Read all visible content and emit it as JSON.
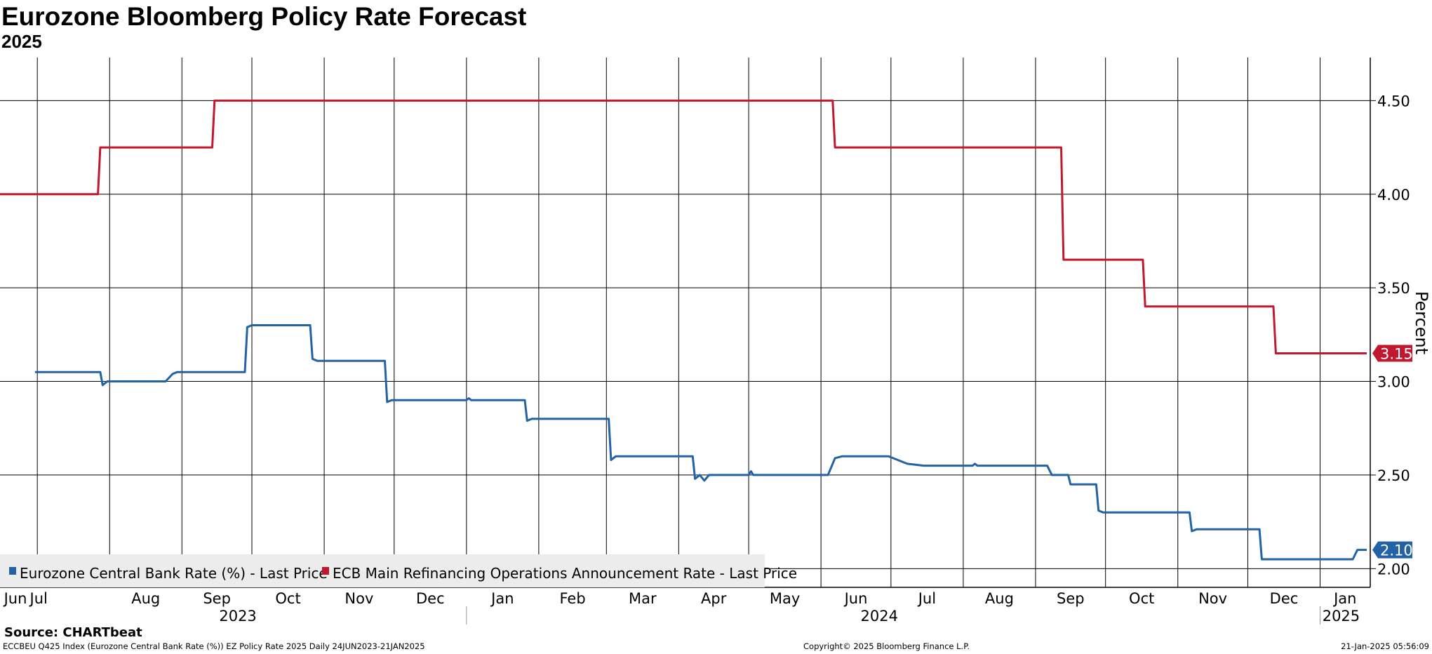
{
  "header": {
    "title": "Eurozone Bloomberg Policy Rate Forecast",
    "subtitle": "2025"
  },
  "footer": {
    "source": "Source: CHARTbeat",
    "left": "ECCBEU Q425 Index (Eurozone Central Bank Rate (%)) EZ Policy Rate 2025  Daily 24JUN2023-21JAN2025",
    "middle": "Copyright© 2025 Bloomberg Finance L.P.",
    "right": "21-Jan-2025 05:56:09"
  },
  "colors": {
    "ecb_refi": "#c0182f",
    "ez_cbr": "#2262a5",
    "legend_bg": "#ececec"
  },
  "chart_data": {
    "type": "line",
    "ylabel": "Percent",
    "ylim": [
      1.9,
      4.73
    ],
    "yticks": [
      "2.00",
      "2.50",
      "3.00",
      "3.50",
      "4.00",
      "4.50"
    ],
    "xlim": [
      "2023-06-24",
      "2025-01-21"
    ],
    "grid": true,
    "legend_position": "bottom-left",
    "month_ticks": [
      {
        "label": "Jun",
        "date": "2023-06-15"
      },
      {
        "label": "Jul",
        "date": "2023-07-01"
      },
      {
        "label": "Aug",
        "date": "2023-08-01"
      },
      {
        "label": "Sep",
        "date": "2023-09-01"
      },
      {
        "label": "Oct",
        "date": "2023-10-01"
      },
      {
        "label": "Nov",
        "date": "2023-11-01"
      },
      {
        "label": "Dec",
        "date": "2023-12-01"
      },
      {
        "label": "Jan",
        "date": "2024-01-01"
      },
      {
        "label": "Feb",
        "date": "2024-02-01"
      },
      {
        "label": "Mar",
        "date": "2024-03-01"
      },
      {
        "label": "Apr",
        "date": "2024-04-01"
      },
      {
        "label": "May",
        "date": "2024-05-01"
      },
      {
        "label": "Jun",
        "date": "2024-06-01"
      },
      {
        "label": "Jul",
        "date": "2024-07-01"
      },
      {
        "label": "Aug",
        "date": "2024-08-01"
      },
      {
        "label": "Sep",
        "date": "2024-09-01"
      },
      {
        "label": "Oct",
        "date": "2024-10-01"
      },
      {
        "label": "Nov",
        "date": "2024-11-01"
      },
      {
        "label": "Dec",
        "date": "2024-12-01"
      },
      {
        "label": "Jan",
        "date": "2025-01-01"
      }
    ],
    "year_labels": [
      {
        "label": "2023",
        "date": "2023-09-25"
      },
      {
        "label": "2024",
        "date": "2024-06-26"
      },
      {
        "label": "2025",
        "date": "2025-01-10"
      }
    ],
    "year_dividers": [
      "2024-01-01",
      "2025-01-01"
    ],
    "series": [
      {
        "name": "ECB Main Refinancing Operations Announcement Rate - Last Price",
        "color": "#c0182f",
        "last_label": "3.15",
        "points": [
          [
            "2023-06-15",
            4.0
          ],
          [
            "2023-07-27",
            4.0
          ],
          [
            "2023-07-28",
            4.25
          ],
          [
            "2023-09-14",
            4.25
          ],
          [
            "2023-09-15",
            4.5
          ],
          [
            "2024-06-06",
            4.5
          ],
          [
            "2024-06-07",
            4.25
          ],
          [
            "2024-09-12",
            4.25
          ],
          [
            "2024-09-13",
            3.65
          ],
          [
            "2024-10-17",
            3.65
          ],
          [
            "2024-10-18",
            3.4
          ],
          [
            "2024-12-12",
            3.4
          ],
          [
            "2024-12-13",
            3.15
          ],
          [
            "2025-01-21",
            3.15
          ]
        ]
      },
      {
        "name": "Eurozone Central Bank Rate (%) - Last Price",
        "color": "#2262a5",
        "last_label": "2.10",
        "points": [
          [
            "2023-06-30",
            3.05
          ],
          [
            "2023-07-01",
            3.05
          ],
          [
            "2023-07-28",
            3.05
          ],
          [
            "2023-07-29",
            2.98
          ],
          [
            "2023-07-31",
            3.0
          ],
          [
            "2023-08-25",
            3.0
          ],
          [
            "2023-08-28",
            3.04
          ],
          [
            "2023-08-30",
            3.05
          ],
          [
            "2023-09-28",
            3.05
          ],
          [
            "2023-09-29",
            3.29
          ],
          [
            "2023-10-01",
            3.3
          ],
          [
            "2023-10-26",
            3.3
          ],
          [
            "2023-10-27",
            3.12
          ],
          [
            "2023-10-29",
            3.11
          ],
          [
            "2023-11-27",
            3.11
          ],
          [
            "2023-11-28",
            2.89
          ],
          [
            "2023-11-30",
            2.9
          ],
          [
            "2024-01-01",
            2.9
          ],
          [
            "2024-01-02",
            2.91
          ],
          [
            "2024-01-03",
            2.9
          ],
          [
            "2024-01-26",
            2.9
          ],
          [
            "2024-01-27",
            2.79
          ],
          [
            "2024-01-29",
            2.8
          ],
          [
            "2024-03-02",
            2.8
          ],
          [
            "2024-03-03",
            2.58
          ],
          [
            "2024-03-05",
            2.6
          ],
          [
            "2024-04-07",
            2.6
          ],
          [
            "2024-04-08",
            2.48
          ],
          [
            "2024-04-10",
            2.5
          ],
          [
            "2024-04-12",
            2.47
          ],
          [
            "2024-04-14",
            2.5
          ],
          [
            "2024-04-26",
            2.5
          ],
          [
            "2024-05-01",
            2.5
          ],
          [
            "2024-05-02",
            2.52
          ],
          [
            "2024-05-03",
            2.5
          ],
          [
            "2024-06-04",
            2.5
          ],
          [
            "2024-06-07",
            2.59
          ],
          [
            "2024-06-10",
            2.6
          ],
          [
            "2024-06-30",
            2.6
          ],
          [
            "2024-07-08",
            2.56
          ],
          [
            "2024-07-15",
            2.55
          ],
          [
            "2024-08-05",
            2.55
          ],
          [
            "2024-08-06",
            2.56
          ],
          [
            "2024-08-07",
            2.55
          ],
          [
            "2024-09-06",
            2.55
          ],
          [
            "2024-09-08",
            2.5
          ],
          [
            "2024-09-15",
            2.5
          ],
          [
            "2024-09-16",
            2.45
          ],
          [
            "2024-09-27",
            2.45
          ],
          [
            "2024-09-28",
            2.31
          ],
          [
            "2024-09-30",
            2.3
          ],
          [
            "2024-11-06",
            2.3
          ],
          [
            "2024-11-07",
            2.2
          ],
          [
            "2024-11-09",
            2.21
          ],
          [
            "2024-12-06",
            2.21
          ],
          [
            "2024-12-07",
            2.05
          ],
          [
            "2025-01-15",
            2.05
          ],
          [
            "2025-01-17",
            2.1
          ],
          [
            "2025-01-21",
            2.1
          ]
        ]
      }
    ]
  }
}
